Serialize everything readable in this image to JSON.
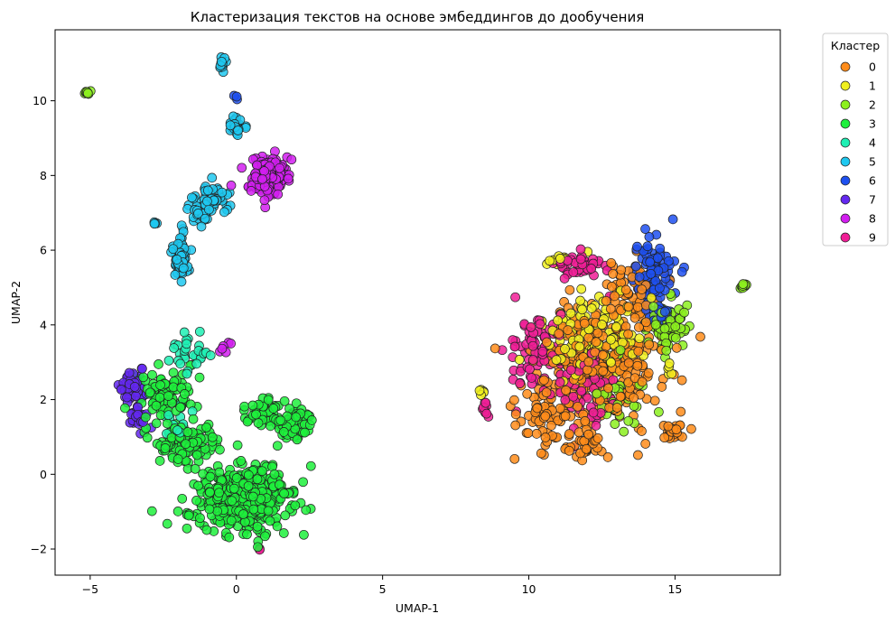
{
  "chart_data": {
    "type": "scatter",
    "title": "Кластеризация текстов на основе эмбеддингов до дообучения",
    "xlabel": "UMAP-1",
    "ylabel": "UMAP-2",
    "xlim": [
      -6.2,
      18.6
    ],
    "ylim": [
      -2.7,
      11.9
    ],
    "xticks": [
      -5,
      0,
      5,
      10,
      15
    ],
    "yticks": [
      -2,
      0,
      2,
      4,
      6,
      8,
      10
    ],
    "xtick_labels": [
      "−5",
      "0",
      "5",
      "10",
      "15"
    ],
    "ytick_labels": [
      "−2",
      "0",
      "2",
      "4",
      "6",
      "8",
      "10"
    ],
    "grid": false,
    "legend": {
      "title": "Кластер",
      "placement": "outside-top-right",
      "entries": [
        "0",
        "1",
        "2",
        "3",
        "4",
        "5",
        "6",
        "7",
        "8",
        "9"
      ]
    },
    "series": [
      {
        "name": "0",
        "color": "#ff8c1a",
        "blobs": [
          [
            12.5,
            3.0,
            1.9,
            1.6,
            340
          ],
          [
            10.5,
            1.6,
            1.0,
            0.8,
            60
          ],
          [
            13.5,
            5.0,
            0.8,
            0.8,
            60
          ],
          [
            15.0,
            1.1,
            0.35,
            0.2,
            25
          ],
          [
            12.0,
            0.8,
            0.6,
            0.4,
            30
          ]
        ]
      },
      {
        "name": "1",
        "color": "#f0f01e",
        "blobs": [
          [
            12.2,
            3.6,
            1.4,
            1.1,
            140
          ],
          [
            8.4,
            2.2,
            0.1,
            0.1,
            5
          ],
          [
            14.8,
            2.8,
            0.1,
            0.2,
            5
          ],
          [
            11.0,
            5.7,
            0.3,
            0.15,
            10
          ]
        ]
      },
      {
        "name": "2",
        "color": "#8cf01e",
        "blobs": [
          [
            14.7,
            3.9,
            0.7,
            0.6,
            80
          ],
          [
            17.3,
            5.05,
            0.12,
            0.06,
            10
          ],
          [
            -5.1,
            10.2,
            0.1,
            0.07,
            8
          ],
          [
            13.0,
            2.0,
            0.9,
            0.9,
            35
          ]
        ]
      },
      {
        "name": "3",
        "color": "#1ef03c",
        "blobs": [
          [
            0.3,
            -0.6,
            1.4,
            0.8,
            420
          ],
          [
            -1.6,
            0.8,
            1.0,
            0.5,
            110
          ],
          [
            -2.4,
            2.1,
            0.8,
            0.6,
            90
          ],
          [
            1.8,
            1.4,
            0.8,
            0.5,
            80
          ],
          [
            0.9,
            1.7,
            0.5,
            0.3,
            40
          ],
          [
            -1.6,
            -1.05,
            0.3,
            0.05,
            6
          ]
        ]
      },
      {
        "name": "4",
        "color": "#1ef0b4",
        "blobs": [
          [
            -1.6,
            3.1,
            0.6,
            0.5,
            30
          ],
          [
            -2.0,
            1.6,
            0.5,
            0.4,
            15
          ]
        ]
      },
      {
        "name": "5",
        "color": "#1ec8f0",
        "blobs": [
          [
            -1.9,
            5.9,
            0.25,
            0.6,
            60
          ],
          [
            -0.8,
            7.4,
            0.5,
            0.35,
            50
          ],
          [
            0.0,
            9.4,
            0.25,
            0.35,
            25
          ],
          [
            -0.5,
            11.0,
            0.12,
            0.2,
            14
          ],
          [
            -2.8,
            6.7,
            0.08,
            0.05,
            4
          ],
          [
            -1.3,
            7.0,
            0.3,
            0.2,
            20
          ]
        ]
      },
      {
        "name": "6",
        "color": "#1e50f0",
        "blobs": [
          [
            14.3,
            5.5,
            0.6,
            0.9,
            90
          ],
          [
            14.6,
            4.2,
            0.4,
            0.4,
            20
          ],
          [
            0.0,
            10.1,
            0.1,
            0.1,
            3
          ]
        ]
      },
      {
        "name": "7",
        "color": "#6428f0",
        "blobs": [
          [
            -3.6,
            2.3,
            0.35,
            0.35,
            60
          ],
          [
            -3.3,
            1.5,
            0.3,
            0.3,
            25
          ]
        ]
      },
      {
        "name": "8",
        "color": "#d21ef0",
        "blobs": [
          [
            1.1,
            8.0,
            0.6,
            0.5,
            170
          ],
          [
            -0.4,
            3.3,
            0.3,
            0.3,
            6
          ]
        ]
      },
      {
        "name": "9",
        "color": "#f01e96",
        "blobs": [
          [
            10.3,
            3.3,
            0.8,
            1.0,
            80
          ],
          [
            11.8,
            5.6,
            0.8,
            0.3,
            40
          ],
          [
            12.0,
            2.3,
            1.0,
            1.2,
            60
          ],
          [
            8.5,
            1.8,
            0.15,
            0.2,
            10
          ],
          [
            0.8,
            -2.0,
            0.05,
            0.03,
            2
          ]
        ]
      }
    ]
  }
}
